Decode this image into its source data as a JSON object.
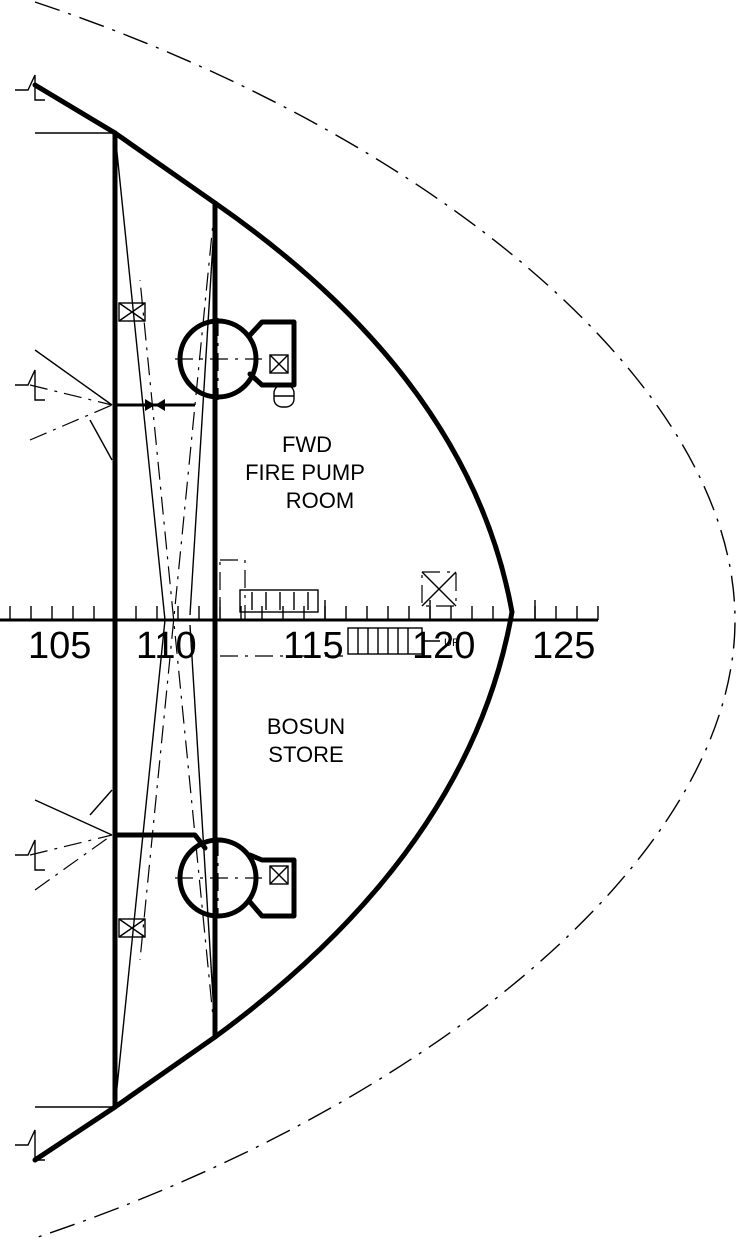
{
  "rooms": {
    "fire_pump_room": {
      "line1": "FWD",
      "line2": "FIRE PUMP",
      "line3": "ROOM"
    },
    "bosun_store": {
      "line1": "BOSUN",
      "line2": "STORE"
    }
  },
  "frame_scale": {
    "labels": [
      "105",
      "110",
      "115",
      "120",
      "125"
    ]
  },
  "annotations": {
    "ladder_up": "UP"
  }
}
